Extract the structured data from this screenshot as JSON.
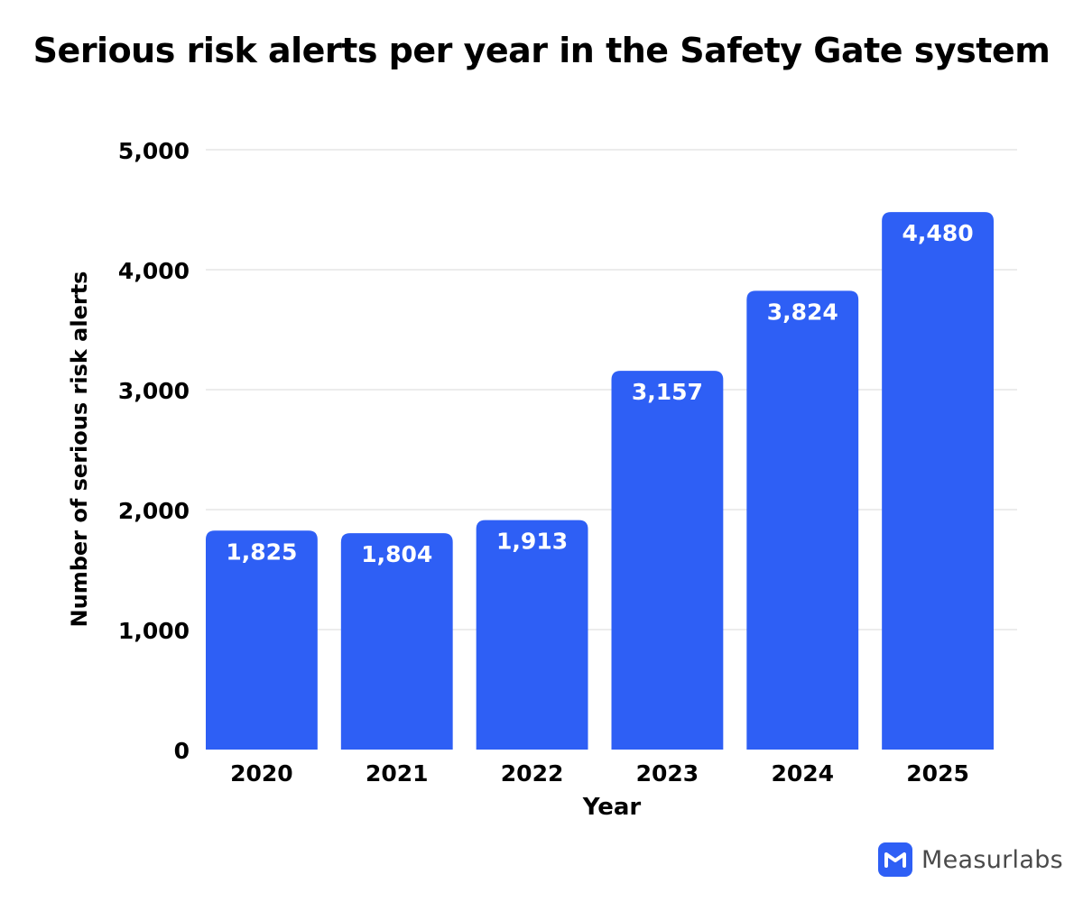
{
  "chart_data": {
    "type": "bar",
    "title": "Serious risk alerts per year in the Safety Gate system",
    "xlabel": "Year",
    "ylabel": "Number of serious risk alerts",
    "categories": [
      "2020",
      "2021",
      "2022",
      "2023",
      "2024",
      "2025"
    ],
    "values": [
      1825,
      1804,
      1913,
      3157,
      3824,
      4480
    ],
    "value_labels": [
      "1,825",
      "1,804",
      "1,913",
      "3,157",
      "3,824",
      "4,480"
    ],
    "ylim": [
      0,
      5000
    ],
    "yticks": [
      0,
      1000,
      2000,
      3000,
      4000,
      5000
    ],
    "ytick_labels": [
      "0",
      "1,000",
      "2,000",
      "3,000",
      "4,000",
      "5,000"
    ],
    "grid": true,
    "legend": "none",
    "colors": {
      "bar": "#2e5ff5",
      "gridline": "#d9d9d9",
      "value_label": "#ffffff"
    }
  },
  "branding": {
    "name": "Measurlabs",
    "logo_icon": "m-logo-icon"
  }
}
